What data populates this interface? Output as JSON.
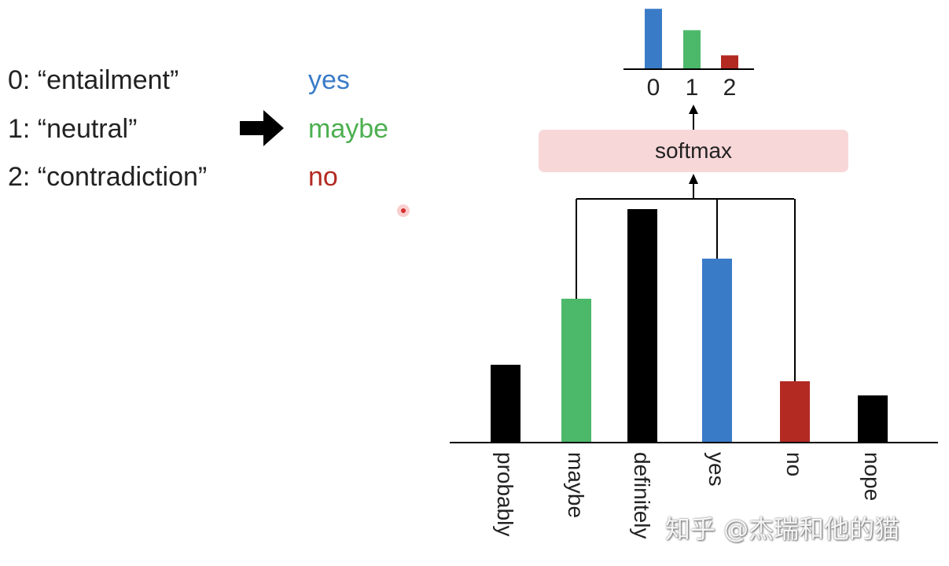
{
  "mapping": [
    {
      "label": "0: “entailment”",
      "answer": "yes",
      "color": "#3a7bc8"
    },
    {
      "label": "1: “neutral”",
      "answer": "maybe",
      "color": "#4caf50"
    },
    {
      "label": "2: “contradiction”",
      "answer": "no",
      "color": "#b22a22"
    }
  ],
  "arrow_icon": "right-arrow-icon",
  "softmax_label": "softmax",
  "softmax_box_color": "#f8d7d9",
  "chart_data": [
    {
      "type": "bar",
      "categories": [
        "probably",
        "maybe",
        "definitely",
        "yes",
        "no",
        "nope"
      ],
      "values": [
        33,
        61,
        99,
        78,
        26,
        20
      ],
      "colors": [
        "#000000",
        "#4cb86a",
        "#000000",
        "#3a7bc8",
        "#b22a22",
        "#000000"
      ],
      "inputs_to_softmax": [
        "maybe",
        "yes",
        "no"
      ]
    },
    {
      "type": "bar",
      "categories": [
        "0",
        "1",
        "2"
      ],
      "values": [
        0.48,
        0.31,
        0.11
      ],
      "colors": [
        "#3a7bc8",
        "#4cb86a",
        "#b22a22"
      ]
    }
  ],
  "watermark": "知乎 @杰瑞和他的猫"
}
